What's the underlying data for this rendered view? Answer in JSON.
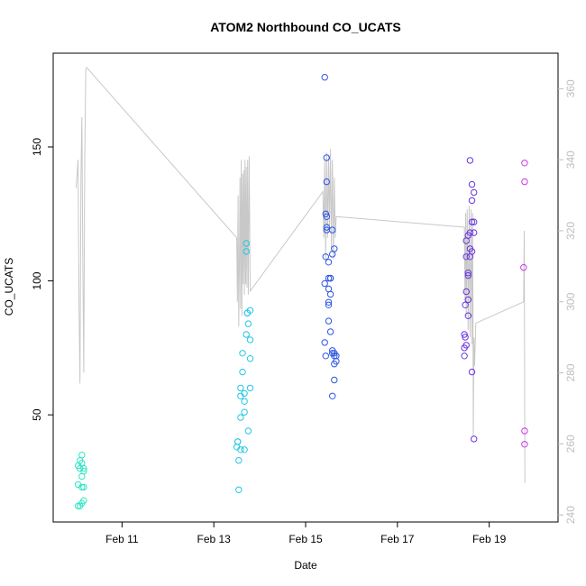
{
  "chart_data": {
    "type": "scatter",
    "title": "ATOM2 Northbound CO_UCATS",
    "xlabel": "Date",
    "ylabel": "CO_UCATS",
    "xlim": [
      "2016-02-09T12:00",
      "2016-02-20T12:00"
    ],
    "ylim": [
      10,
      185
    ],
    "x_ticks": [
      {
        "date": "2016-02-11",
        "label": "Feb 11"
      },
      {
        "date": "2016-02-13",
        "label": "Feb 13"
      },
      {
        "date": "2016-02-15",
        "label": "Feb 15"
      },
      {
        "date": "2016-02-17",
        "label": "Feb 17"
      },
      {
        "date": "2016-02-19",
        "label": "Feb 19"
      }
    ],
    "y_ticks": [
      50,
      100,
      150
    ],
    "y2_ticks": [
      240,
      260,
      280,
      300,
      320,
      340,
      360
    ],
    "y2lim": [
      238,
      370
    ],
    "grid": false,
    "series": [
      {
        "color": "#2ee6c2",
        "points": [
          {
            "x": "2016-02-10T01:00",
            "y": 16
          },
          {
            "x": "2016-02-10T01:00",
            "y": 24
          },
          {
            "x": "2016-02-10T01:00",
            "y": 31
          },
          {
            "x": "2016-02-10T02:00",
            "y": 30
          },
          {
            "x": "2016-02-10T02:00",
            "y": 33
          },
          {
            "x": "2016-02-10T02:00",
            "y": 16
          },
          {
            "x": "2016-02-10T03:00",
            "y": 35
          },
          {
            "x": "2016-02-10T03:00",
            "y": 32
          },
          {
            "x": "2016-02-10T03:00",
            "y": 27
          },
          {
            "x": "2016-02-10T03:00",
            "y": 23
          },
          {
            "x": "2016-02-10T03:00",
            "y": 17
          },
          {
            "x": "2016-02-10T04:00",
            "y": 30
          },
          {
            "x": "2016-02-10T04:00",
            "y": 29
          },
          {
            "x": "2016-02-10T04:00",
            "y": 23
          },
          {
            "x": "2016-02-10T04:00",
            "y": 18
          }
        ]
      },
      {
        "color": "#22c6e6",
        "points": [
          {
            "x": "2016-02-13T12:00",
            "y": 38
          },
          {
            "x": "2016-02-13T12:30",
            "y": 40
          },
          {
            "x": "2016-02-13T12:30",
            "y": 40
          },
          {
            "x": "2016-02-13T13:00",
            "y": 33
          },
          {
            "x": "2016-02-13T13:00",
            "y": 22
          },
          {
            "x": "2016-02-13T14:00",
            "y": 37
          },
          {
            "x": "2016-02-13T14:00",
            "y": 49
          },
          {
            "x": "2016-02-13T14:00",
            "y": 57
          },
          {
            "x": "2016-02-13T14:00",
            "y": 60
          },
          {
            "x": "2016-02-13T15:00",
            "y": 66
          },
          {
            "x": "2016-02-13T15:00",
            "y": 73
          },
          {
            "x": "2016-02-13T16:00",
            "y": 55
          },
          {
            "x": "2016-02-13T16:00",
            "y": 58
          },
          {
            "x": "2016-02-13T16:00",
            "y": 51
          },
          {
            "x": "2016-02-13T16:00",
            "y": 37
          },
          {
            "x": "2016-02-13T17:00",
            "y": 80
          },
          {
            "x": "2016-02-13T17:00",
            "y": 114
          },
          {
            "x": "2016-02-13T17:00",
            "y": 111
          },
          {
            "x": "2016-02-13T17:30",
            "y": 88
          },
          {
            "x": "2016-02-13T17:30",
            "y": 88
          },
          {
            "x": "2016-02-13T18:00",
            "y": 44
          },
          {
            "x": "2016-02-13T18:00",
            "y": 84
          },
          {
            "x": "2016-02-13T19:00",
            "y": 89
          },
          {
            "x": "2016-02-13T19:00",
            "y": 78
          },
          {
            "x": "2016-02-13T19:00",
            "y": 71
          },
          {
            "x": "2016-02-13T19:00",
            "y": 60
          }
        ]
      },
      {
        "color": "#2b55e6",
        "points": [
          {
            "x": "2016-02-15T10:00",
            "y": 176
          },
          {
            "x": "2016-02-15T10:00",
            "y": 99
          },
          {
            "x": "2016-02-15T10:00",
            "y": 77
          },
          {
            "x": "2016-02-15T10:30",
            "y": 109
          },
          {
            "x": "2016-02-15T10:30",
            "y": 125
          },
          {
            "x": "2016-02-15T10:30",
            "y": 72
          },
          {
            "x": "2016-02-15T11:00",
            "y": 146
          },
          {
            "x": "2016-02-15T11:00",
            "y": 137
          },
          {
            "x": "2016-02-15T11:00",
            "y": 124
          },
          {
            "x": "2016-02-15T11:00",
            "y": 120
          },
          {
            "x": "2016-02-15T11:00",
            "y": 119
          },
          {
            "x": "2016-02-15T12:00",
            "y": 107
          },
          {
            "x": "2016-02-15T12:00",
            "y": 101
          },
          {
            "x": "2016-02-15T12:00",
            "y": 97
          },
          {
            "x": "2016-02-15T12:00",
            "y": 92
          },
          {
            "x": "2016-02-15T12:00",
            "y": 91
          },
          {
            "x": "2016-02-15T12:00",
            "y": 85
          },
          {
            "x": "2016-02-15T13:00",
            "y": 101
          },
          {
            "x": "2016-02-15T13:00",
            "y": 101
          },
          {
            "x": "2016-02-15T13:00",
            "y": 95
          },
          {
            "x": "2016-02-15T13:00",
            "y": 81
          },
          {
            "x": "2016-02-15T14:00",
            "y": 119
          },
          {
            "x": "2016-02-15T14:00",
            "y": 110
          },
          {
            "x": "2016-02-15T14:00",
            "y": 74
          },
          {
            "x": "2016-02-15T14:00",
            "y": 73
          },
          {
            "x": "2016-02-15T14:00",
            "y": 57
          },
          {
            "x": "2016-02-15T15:00",
            "y": 112
          },
          {
            "x": "2016-02-15T15:00",
            "y": 73
          },
          {
            "x": "2016-02-15T15:00",
            "y": 72
          },
          {
            "x": "2016-02-15T15:00",
            "y": 69
          },
          {
            "x": "2016-02-15T15:00",
            "y": 63
          },
          {
            "x": "2016-02-15T16:00",
            "y": 72
          },
          {
            "x": "2016-02-15T16:00",
            "y": 70
          }
        ]
      },
      {
        "color": "#6a35e0",
        "points": [
          {
            "x": "2016-02-18T11:00",
            "y": 72
          },
          {
            "x": "2016-02-18T11:00",
            "y": 75
          },
          {
            "x": "2016-02-18T11:00",
            "y": 80
          },
          {
            "x": "2016-02-18T11:30",
            "y": 91
          },
          {
            "x": "2016-02-18T11:30",
            "y": 79
          },
          {
            "x": "2016-02-18T12:00",
            "y": 115
          },
          {
            "x": "2016-02-18T12:00",
            "y": 109
          },
          {
            "x": "2016-02-18T12:00",
            "y": 96
          },
          {
            "x": "2016-02-18T12:00",
            "y": 76
          },
          {
            "x": "2016-02-18T13:00",
            "y": 117
          },
          {
            "x": "2016-02-18T13:00",
            "y": 103
          },
          {
            "x": "2016-02-18T13:00",
            "y": 102
          },
          {
            "x": "2016-02-18T13:00",
            "y": 93
          },
          {
            "x": "2016-02-18T13:00",
            "y": 87
          },
          {
            "x": "2016-02-18T14:00",
            "y": 145
          },
          {
            "x": "2016-02-18T14:00",
            "y": 118
          },
          {
            "x": "2016-02-18T14:00",
            "y": 112
          },
          {
            "x": "2016-02-18T14:00",
            "y": 109
          },
          {
            "x": "2016-02-18T15:00",
            "y": 136
          },
          {
            "x": "2016-02-18T15:00",
            "y": 130
          },
          {
            "x": "2016-02-18T15:00",
            "y": 122
          },
          {
            "x": "2016-02-18T15:00",
            "y": 111
          },
          {
            "x": "2016-02-18T15:00",
            "y": 66
          },
          {
            "x": "2016-02-18T16:00",
            "y": 133
          },
          {
            "x": "2016-02-18T16:00",
            "y": 122
          },
          {
            "x": "2016-02-18T16:00",
            "y": 118
          },
          {
            "x": "2016-02-18T16:00",
            "y": 41
          }
        ]
      },
      {
        "color": "#cc35e6",
        "points": [
          {
            "x": "2016-02-19T18:30",
            "y": 144
          },
          {
            "x": "2016-02-19T18:30",
            "y": 137
          },
          {
            "x": "2016-02-19T18:00",
            "y": 105
          },
          {
            "x": "2016-02-19T18:30",
            "y": 44
          },
          {
            "x": "2016-02-19T18:30",
            "y": 39
          }
        ]
      }
    ],
    "secondary_line": {
      "color": "#c8c8c8",
      "axis": "right",
      "points": [
        {
          "x": "2016-02-10T00:00",
          "y": 332
        },
        {
          "x": "2016-02-10T00:30",
          "y": 336
        },
        {
          "x": "2016-02-10T01:00",
          "y": 340
        },
        {
          "x": "2016-02-10T01:30",
          "y": 300
        },
        {
          "x": "2016-02-10T02:00",
          "y": 277
        },
        {
          "x": "2016-02-10T02:30",
          "y": 335
        },
        {
          "x": "2016-02-10T03:00",
          "y": 352
        },
        {
          "x": "2016-02-10T03:30",
          "y": 310
        },
        {
          "x": "2016-02-10T04:00",
          "y": 280
        },
        {
          "x": "2016-02-10T04:30",
          "y": 340
        },
        {
          "x": "2016-02-10T05:00",
          "y": 365
        },
        {
          "x": "2016-02-10T05:30",
          "y": 366
        },
        {
          "x": "2016-02-13T12:00",
          "y": 318
        },
        {
          "x": "2016-02-13T12:20",
          "y": 300
        },
        {
          "x": "2016-02-13T12:40",
          "y": 330
        },
        {
          "x": "2016-02-13T13:00",
          "y": 293
        },
        {
          "x": "2016-02-13T13:20",
          "y": 310
        },
        {
          "x": "2016-02-13T13:40",
          "y": 335
        },
        {
          "x": "2016-02-13T14:00",
          "y": 298
        },
        {
          "x": "2016-02-13T14:20",
          "y": 340
        },
        {
          "x": "2016-02-13T14:40",
          "y": 296
        },
        {
          "x": "2016-02-13T15:00",
          "y": 336
        },
        {
          "x": "2016-02-13T15:20",
          "y": 305
        },
        {
          "x": "2016-02-13T15:40",
          "y": 337
        },
        {
          "x": "2016-02-13T16:00",
          "y": 302
        },
        {
          "x": "2016-02-13T16:20",
          "y": 340
        },
        {
          "x": "2016-02-13T16:40",
          "y": 305
        },
        {
          "x": "2016-02-13T17:00",
          "y": 338
        },
        {
          "x": "2016-02-13T17:20",
          "y": 304
        },
        {
          "x": "2016-02-13T17:40",
          "y": 340
        },
        {
          "x": "2016-02-13T18:00",
          "y": 302
        },
        {
          "x": "2016-02-13T18:30",
          "y": 341
        },
        {
          "x": "2016-02-13T19:00",
          "y": 303
        },
        {
          "x": "2016-02-15T09:00",
          "y": 331
        },
        {
          "x": "2016-02-15T09:30",
          "y": 318
        },
        {
          "x": "2016-02-15T10:00",
          "y": 340
        },
        {
          "x": "2016-02-15T10:30",
          "y": 312
        },
        {
          "x": "2016-02-15T11:00",
          "y": 342
        },
        {
          "x": "2016-02-15T11:30",
          "y": 318
        },
        {
          "x": "2016-02-15T12:00",
          "y": 341
        },
        {
          "x": "2016-02-15T12:30",
          "y": 320
        },
        {
          "x": "2016-02-15T13:00",
          "y": 343
        },
        {
          "x": "2016-02-15T13:30",
          "y": 315
        },
        {
          "x": "2016-02-15T14:00",
          "y": 340
        },
        {
          "x": "2016-02-15T14:30",
          "y": 312
        },
        {
          "x": "2016-02-15T15:00",
          "y": 335
        },
        {
          "x": "2016-02-15T15:30",
          "y": 318
        },
        {
          "x": "2016-02-15T16:00",
          "y": 324
        },
        {
          "x": "2016-02-18T11:00",
          "y": 321
        },
        {
          "x": "2016-02-18T11:20",
          "y": 300
        },
        {
          "x": "2016-02-18T11:40",
          "y": 325
        },
        {
          "x": "2016-02-18T12:00",
          "y": 296
        },
        {
          "x": "2016-02-18T12:30",
          "y": 326
        },
        {
          "x": "2016-02-18T13:00",
          "y": 292
        },
        {
          "x": "2016-02-18T13:30",
          "y": 327
        },
        {
          "x": "2016-02-18T14:00",
          "y": 290
        },
        {
          "x": "2016-02-18T14:30",
          "y": 326
        },
        {
          "x": "2016-02-18T15:00",
          "y": 288
        },
        {
          "x": "2016-02-18T15:20",
          "y": 325
        },
        {
          "x": "2016-02-18T15:40",
          "y": 262
        },
        {
          "x": "2016-02-18T16:00",
          "y": 290
        },
        {
          "x": "2016-02-18T16:20",
          "y": 282
        },
        {
          "x": "2016-02-18T17:00",
          "y": 294
        },
        {
          "x": "2016-02-19T18:00",
          "y": 300
        },
        {
          "x": "2016-02-19T18:20",
          "y": 320
        },
        {
          "x": "2016-02-19T18:40",
          "y": 249
        }
      ]
    }
  }
}
